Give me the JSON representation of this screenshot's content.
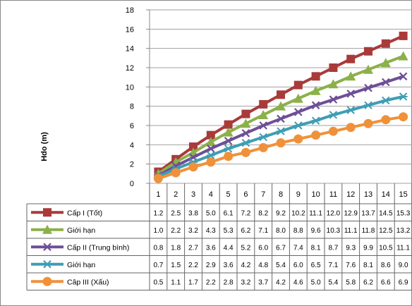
{
  "chart_data": {
    "type": "line",
    "ylabel": "Hdo (m)",
    "ylim": [
      0,
      18
    ],
    "yticks": [
      0,
      2,
      4,
      6,
      8,
      10,
      12,
      14,
      16,
      18
    ],
    "x": [
      "1",
      "2",
      "3",
      "4",
      "5",
      "6",
      "7",
      "8",
      "9",
      "10",
      "11",
      "12",
      "13",
      "14",
      "15"
    ],
    "grid": true,
    "legend_placement": "data-table",
    "series": [
      {
        "name": "Cấp I (Tốt)",
        "color": "#a93a3a",
        "marker": "square",
        "values": [
          1.2,
          2.5,
          3.8,
          5.0,
          6.1,
          7.2,
          8.2,
          9.2,
          10.2,
          11.1,
          12.0,
          12.9,
          13.7,
          14.5,
          15.3
        ]
      },
      {
        "name": "Giới hạn",
        "color": "#8cb04a",
        "marker": "triangle",
        "values": [
          1.0,
          2.2,
          3.2,
          4.3,
          5.3,
          6.2,
          7.1,
          8.0,
          8.8,
          9.6,
          10.3,
          11.1,
          11.8,
          12.5,
          13.2
        ]
      },
      {
        "name": "Cấp II (Trung bình)",
        "color": "#6e4f96",
        "marker": "x",
        "values": [
          0.8,
          1.8,
          2.7,
          3.6,
          4.4,
          5.2,
          6.0,
          6.7,
          7.4,
          8.1,
          8.7,
          9.3,
          9.9,
          10.5,
          11.1
        ]
      },
      {
        "name": "Giới hạn",
        "color": "#3f9db4",
        "marker": "star",
        "values": [
          0.7,
          1.5,
          2.2,
          2.9,
          3.6,
          4.2,
          4.8,
          5.4,
          6.0,
          6.5,
          7.1,
          7.6,
          8.1,
          8.6,
          9.0
        ]
      },
      {
        "name": "Câp III (Xấu)",
        "color": "#f0913a",
        "marker": "circle",
        "values": [
          0.5,
          1.1,
          1.7,
          2.2,
          2.8,
          3.2,
          3.7,
          4.2,
          4.6,
          5.0,
          5.4,
          5.8,
          6.2,
          6.6,
          6.9
        ]
      }
    ]
  }
}
